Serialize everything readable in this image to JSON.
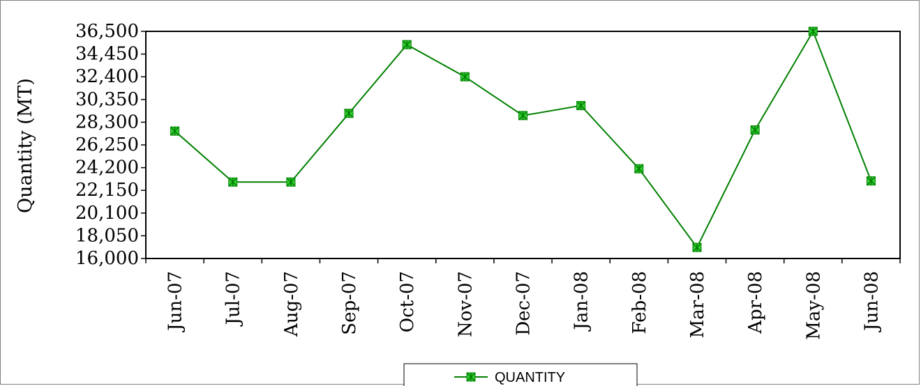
{
  "chart_data": {
    "type": "line",
    "title": "",
    "xlabel": "",
    "ylabel": "Quantity (MT)",
    "categories": [
      "Jun-07",
      "Jul-07",
      "Aug-07",
      "Sep-07",
      "Oct-07",
      "Nov-07",
      "Dec-07",
      "Jan-08",
      "Feb-08",
      "Mar-08",
      "Apr-08",
      "May-08",
      "Jun-08"
    ],
    "series": [
      {
        "name": "QUANTITY",
        "values": [
          27500,
          22900,
          22900,
          29100,
          35300,
          32400,
          28900,
          29800,
          24100,
          17000,
          27600,
          36500,
          23000
        ],
        "color": "#008000",
        "marker_color": "#33cc33"
      }
    ],
    "ylim": [
      16000,
      36500
    ],
    "yticks": [
      16000,
      18050,
      20100,
      22150,
      24200,
      26250,
      28300,
      30350,
      32400,
      34450,
      36500
    ],
    "ytick_labels": [
      "16,000",
      "18,050",
      "20,100",
      "22,150",
      "24,200",
      "26,250",
      "28,300",
      "30,350",
      "32,400",
      "34,450",
      "36,500"
    ],
    "grid": false,
    "legend_position": "bottom-center"
  }
}
